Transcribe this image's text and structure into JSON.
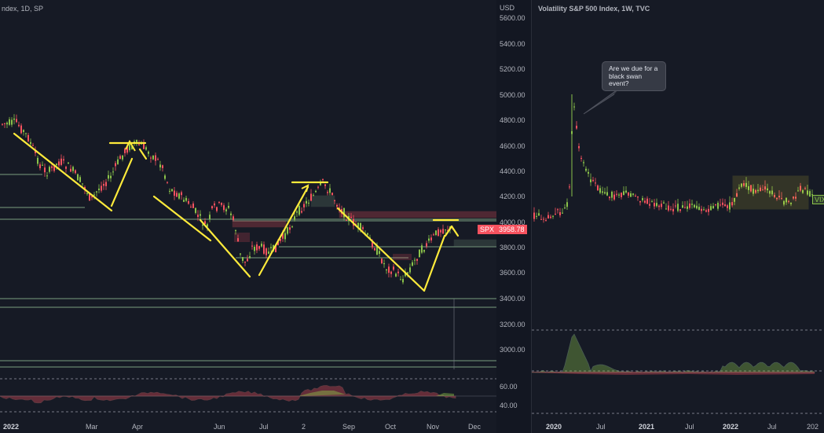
{
  "left_chart": {
    "title": "ndex, 1D, SP",
    "x_labels": [
      "2022",
      "Mar",
      "Apr",
      "Jun",
      "Jul",
      "2",
      "Sep",
      "Oct",
      "Nov",
      "Dec"
    ],
    "symbol_tag": "SPX"
  },
  "price_axis": {
    "unit": "USD",
    "labels": [
      "5600.00",
      "5400.00",
      "5200.00",
      "5000.00",
      "4800.00",
      "4600.00",
      "4400.00",
      "4200.00",
      "4000.00",
      "3800.00",
      "3600.00",
      "3400.00",
      "3200.00",
      "3000.00"
    ],
    "current_price": "3958.78",
    "osc_labels": [
      "60.00",
      "40.00"
    ]
  },
  "right_chart": {
    "title": "Volatility S&P 500 Index, 1W, TVC",
    "x_labels": [
      "2020",
      "Jul",
      "2021",
      "Jul",
      "2022",
      "Jul",
      "202"
    ],
    "symbol_tag": "VIX",
    "callout": "Are we due for a black swan event?"
  },
  "colors": {
    "up": "#8bc34a",
    "down": "#f7525f",
    "annotation": "#ffeb3b",
    "background": "#161a25"
  }
}
